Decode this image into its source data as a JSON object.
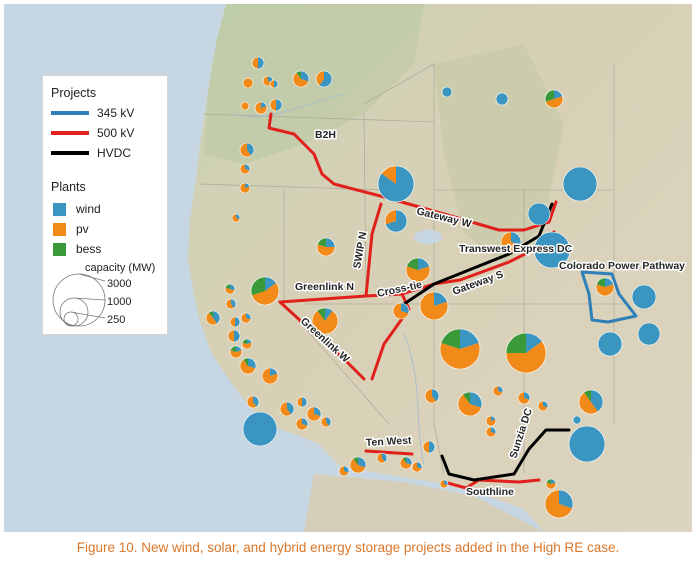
{
  "legend": {
    "projects_title": "Projects",
    "projects": [
      {
        "label": "345 kV",
        "color": "#2f7fb8"
      },
      {
        "label": "500 kV",
        "color": "#e0201b"
      },
      {
        "label": "HVDC",
        "color": "#000000"
      }
    ],
    "plants_title": "Plants",
    "plants": [
      {
        "label": "wind",
        "color": "#3a95c0"
      },
      {
        "label": "pv",
        "color": "#f28a1a"
      },
      {
        "label": "bess",
        "color": "#3a9a3a"
      }
    ],
    "capacity_title": "capacity (MW)",
    "capacity_values": [
      "3000",
      "1000",
      "250"
    ]
  },
  "routes": {
    "b2h": "B2H",
    "gateway_w": "Gateway W",
    "swip_n": "SWIP N",
    "transwest": "Transwest Express DC",
    "colorado": "Colorado Power Pathway",
    "greenlink_n": "Greenlink N",
    "cross_tie": "Cross-tie",
    "gateway_s": "Gateway S",
    "greenlink_w": "Greenlink W",
    "sunzia": "Sunzia DC",
    "ten_west": "Ten West",
    "southline": "Southline"
  },
  "caption": "Figure 10. New wind, solar, and hybrid energy storage projects added in the High RE case."
}
